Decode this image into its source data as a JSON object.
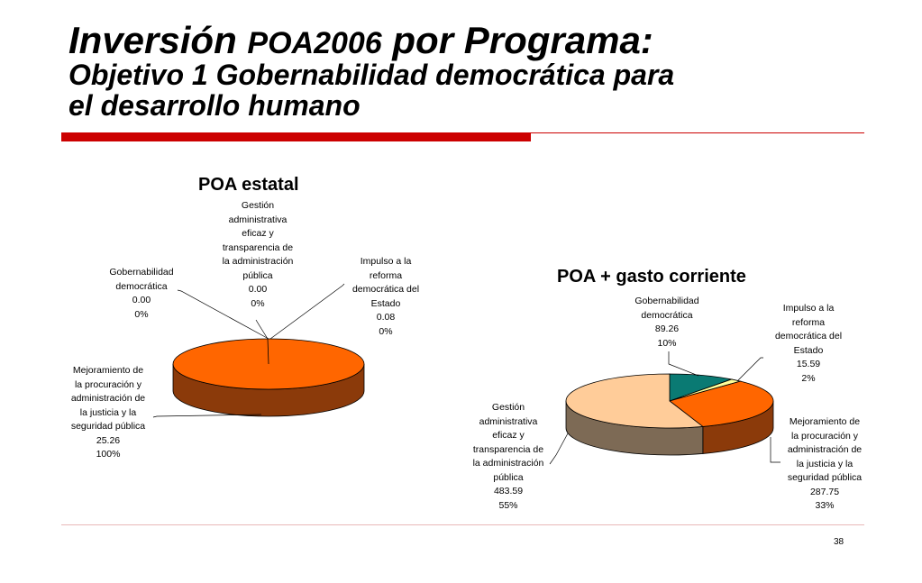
{
  "slide": {
    "title_part1": "Inversión ",
    "title_part2": "POA2006",
    "title_part3": " por Programa:",
    "subtitle_line1": "Objetivo 1 Gobernabilidad democrática para",
    "subtitle_line2": "el desarrollo humano",
    "page_number": "38"
  },
  "colors": {
    "accent_red": "#cc0000",
    "orange": "#ff6600",
    "orange_side": "#8b3a0a",
    "teal": "#0a7a73",
    "teal_side": "#0b3f3b",
    "peach": "#ffcc99",
    "peach_side": "#7d6a55",
    "light_yellow": "#ffff99"
  },
  "chart_data": [
    {
      "type": "pie",
      "title": "POA estatal",
      "slices": [
        {
          "label_lines": [
            "Gestión",
            "administrativa",
            "eficaz y",
            "transparencia de",
            "la administración",
            "pública"
          ],
          "value": 0.0,
          "value_text": "0.00",
          "percent_text": "0%"
        },
        {
          "label_lines": [
            "Impulso a la",
            "reforma",
            "democrática del",
            "Estado"
          ],
          "value": 0.08,
          "value_text": "0.08",
          "percent_text": "0%"
        },
        {
          "label_lines": [
            "Gobernabilidad",
            "democrática"
          ],
          "value": 0.0,
          "value_text": "0.00",
          "percent_text": "0%"
        },
        {
          "label_lines": [
            "Mejoramiento de",
            "la procuración y",
            "administración de",
            "la justicia y la",
            "seguridad pública"
          ],
          "value": 25.26,
          "value_text": "25.26",
          "percent_text": "100%"
        }
      ]
    },
    {
      "type": "pie",
      "title": "POA + gasto corriente",
      "slices": [
        {
          "label_lines": [
            "Gobernabilidad",
            "democrática"
          ],
          "value": 89.26,
          "value_text": "89.26",
          "percent_text": "10%"
        },
        {
          "label_lines": [
            "Impulso a la",
            "reforma",
            "democrática del",
            "Estado"
          ],
          "value": 15.59,
          "value_text": "15.59",
          "percent_text": "2%"
        },
        {
          "label_lines": [
            "Mejoramiento de",
            "la procuración y",
            "administración de",
            "la justicia y la",
            "seguridad pública"
          ],
          "value": 287.75,
          "value_text": "287.75",
          "percent_text": "33%"
        },
        {
          "label_lines": [
            "Gestión",
            "administrativa",
            "eficaz y",
            "transparencia de",
            "la administración",
            "pública"
          ],
          "value": 483.59,
          "value_text": "483.59",
          "percent_text": "55%"
        }
      ]
    }
  ]
}
